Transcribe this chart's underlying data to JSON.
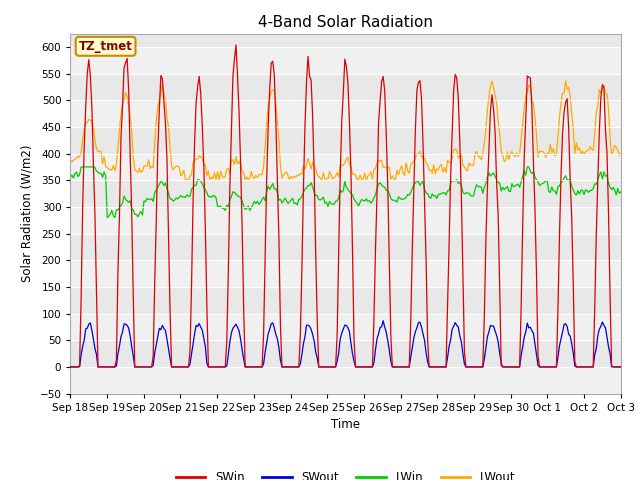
{
  "title": "4-Band Solar Radiation",
  "ylabel": "Solar Radiation (W/m2)",
  "xlabel": "Time",
  "annotation": "TZ_tmet",
  "ylim": [
    -50,
    625
  ],
  "yticks": [
    -50,
    0,
    50,
    100,
    150,
    200,
    250,
    300,
    350,
    400,
    450,
    500,
    550,
    600
  ],
  "colors": {
    "SWin": "#dd0000",
    "SWout": "#0000dd",
    "LWin": "#00cc00",
    "LWout": "#ffaa00"
  },
  "fig_bg": "#ffffff",
  "axes_bg": "#e8e8e8",
  "stripe_color": "#d0d0d0",
  "tick_labels": [
    "Sep 18",
    "Sep 19",
    "Sep 20",
    "Sep 21",
    "Sep 22",
    "Sep 23",
    "Sep 24",
    "Sep 25",
    "Sep 26",
    "Sep 27",
    "Sep 28",
    "Sep 29",
    "Sep 30",
    "Oct 1",
    "Oct 2",
    "Oct 3"
  ]
}
